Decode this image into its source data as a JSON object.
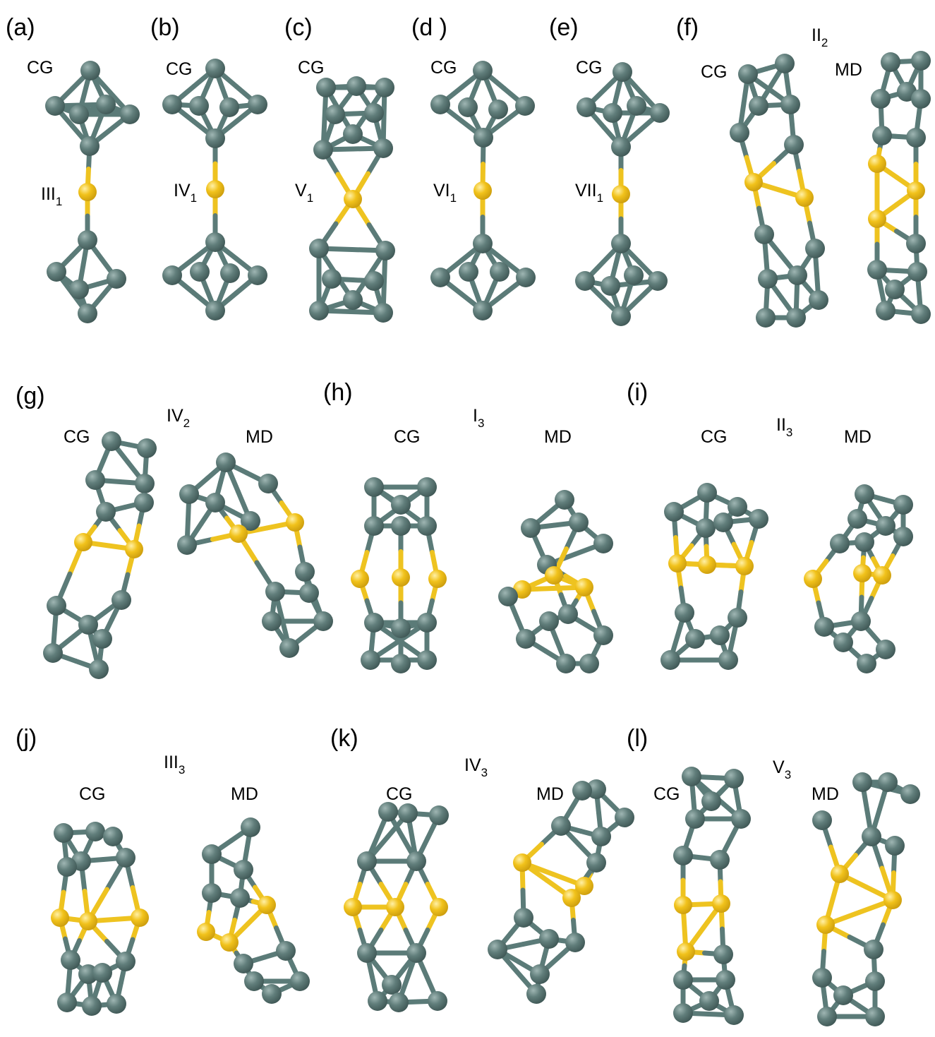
{
  "figure": {
    "panels": [
      {
        "tag": "(a)",
        "class_main": "III",
        "class_sub": "1",
        "methods": [
          "CG"
        ]
      },
      {
        "tag": "(b)",
        "class_main": "IV",
        "class_sub": "1",
        "methods": [
          "CG"
        ]
      },
      {
        "tag": "(c)",
        "class_main": "V",
        "class_sub": "1",
        "methods": [
          "CG"
        ]
      },
      {
        "tag": "(d )",
        "class_main": "VI",
        "class_sub": "1",
        "methods": [
          "CG"
        ]
      },
      {
        "tag": "(e)",
        "class_main": "VII",
        "class_sub": "1",
        "methods": [
          "CG"
        ]
      },
      {
        "tag": "(f)",
        "class_main": "II",
        "class_sub": "2",
        "methods": [
          "CG",
          "MD"
        ]
      },
      {
        "tag": "(g)",
        "class_main": "IV",
        "class_sub": "2",
        "methods": [
          "CG",
          "MD"
        ]
      },
      {
        "tag": "(h)",
        "class_main": "I",
        "class_sub": "3",
        "methods": [
          "CG",
          "MD"
        ]
      },
      {
        "tag": "(i)",
        "class_main": "II",
        "class_sub": "3",
        "methods": [
          "CG",
          "MD"
        ]
      },
      {
        "tag": "(j)",
        "class_main": "III",
        "class_sub": "3",
        "methods": [
          "CG",
          "MD"
        ]
      },
      {
        "tag": "(k)",
        "class_main": "IV",
        "class_sub": "3",
        "methods": [
          "CG",
          "MD"
        ]
      },
      {
        "tag": "(l)",
        "class_main": "V",
        "class_sub": "3",
        "methods": [
          "CG",
          "MD"
        ]
      }
    ],
    "colors": {
      "cluster_atom": "#5b7b78",
      "bridge_atom": "#f1c21b",
      "bond_cluster": "#5b7b78",
      "bond_bridge": "#eec320"
    }
  }
}
